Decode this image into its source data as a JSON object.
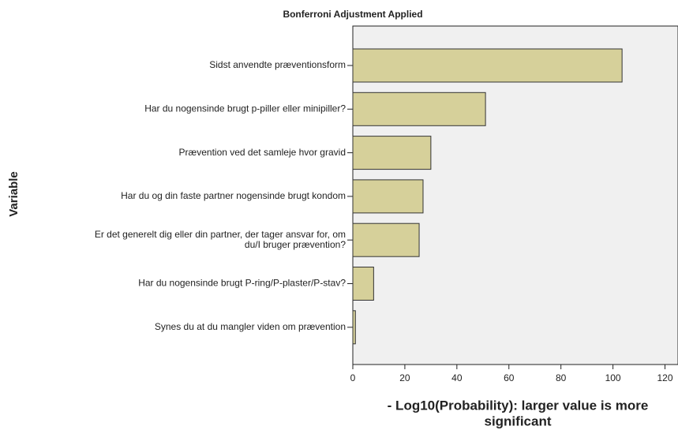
{
  "chart_data": {
    "type": "barh",
    "title": "Bonferroni Adjustment Applied",
    "ylabel": "Variable",
    "xlabel": [
      "- Log10(Probability): larger value is more",
      "significant"
    ],
    "categories": [
      [
        "Sidst anvendte præventionsform"
      ],
      [
        "Har du nogensinde brugt p-piller eller minipiller?"
      ],
      [
        "Prævention ved det samleje hvor gravid"
      ],
      [
        "Har du og din faste partner nogensinde brugt kondom"
      ],
      [
        "Er det generelt dig eller din partner, der tager ansvar for, om",
        "du/I bruger prævention?"
      ],
      [
        "Har du nogensinde brugt P-ring/P-plaster/P-stav?"
      ],
      [
        "Synes du at du mangler viden om prævention"
      ]
    ],
    "values": [
      103.5,
      51,
      30,
      27,
      25.5,
      8,
      1
    ],
    "color": "#d6d09a",
    "xlim": [
      0,
      125
    ],
    "xticks": [
      0,
      20,
      40,
      60,
      80,
      100,
      120
    ]
  }
}
